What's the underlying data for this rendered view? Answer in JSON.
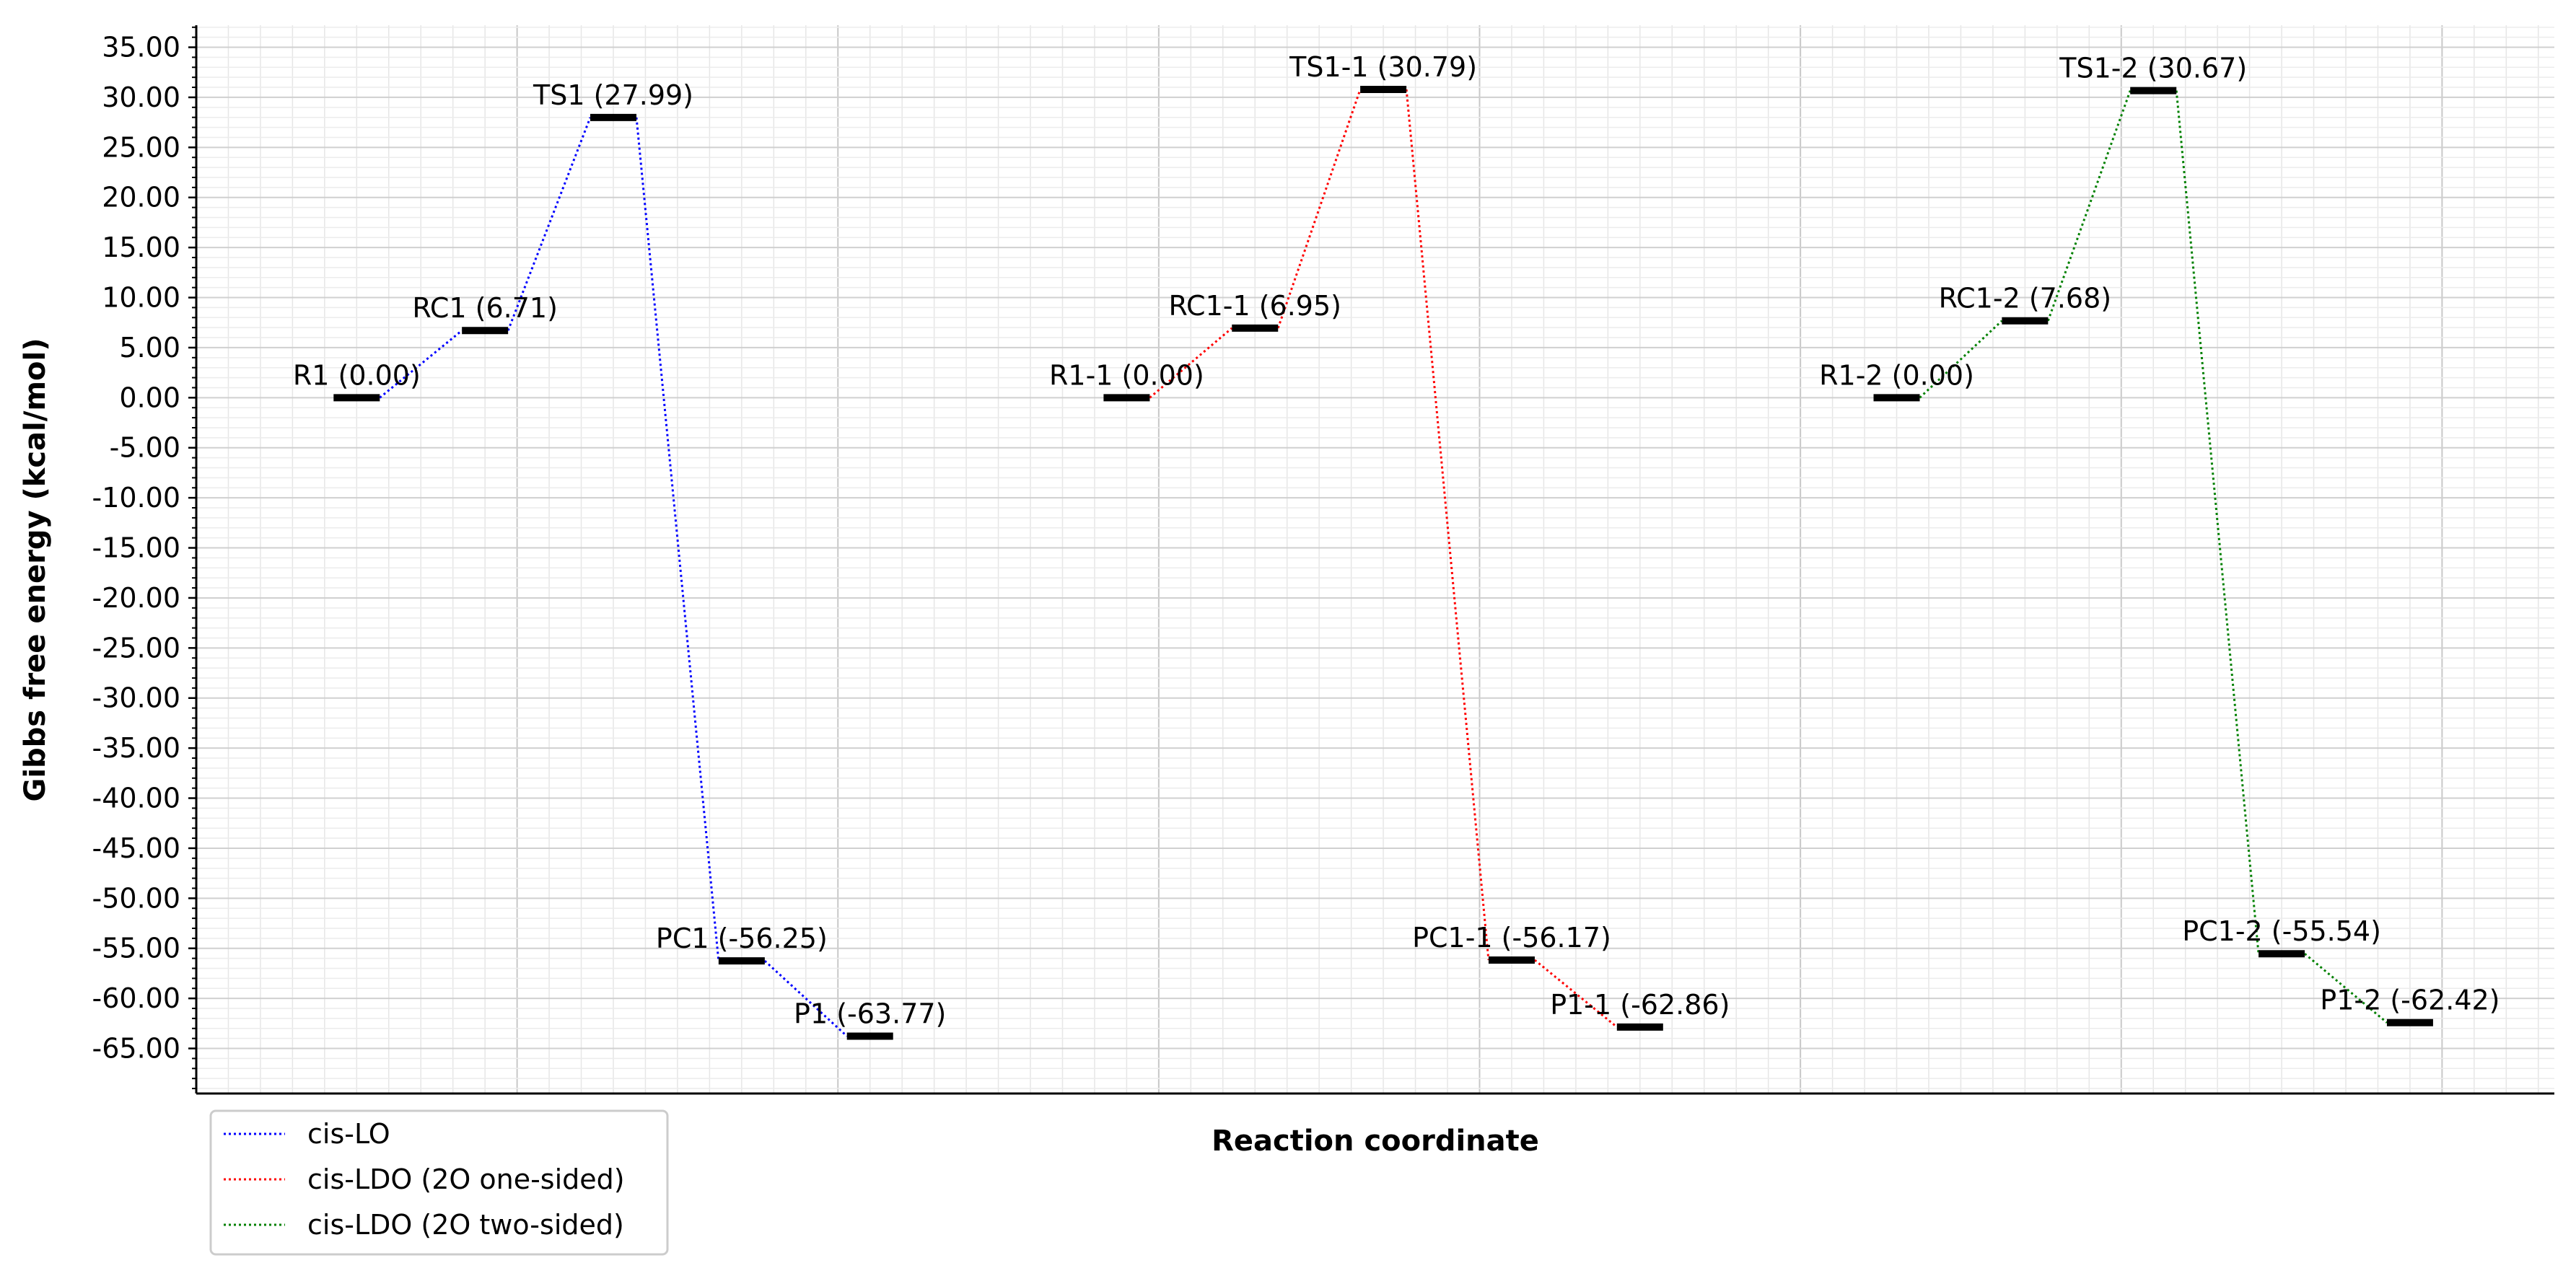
{
  "chart_data": {
    "type": "line",
    "title": "",
    "xlabel": "Reaction coordinate",
    "ylabel": "Gibbs free energy (kcal/mol)",
    "ylim": [
      -69.5,
      37.2
    ],
    "xlim": [
      -0.5,
      6.85
    ],
    "y_ticks": [
      35,
      30,
      25,
      20,
      15,
      10,
      5,
      0,
      -5,
      -10,
      -15,
      -20,
      -25,
      -30,
      -35,
      -40,
      -45,
      -50,
      -55,
      -60,
      -65
    ],
    "y_tick_labels": [
      "35.00",
      "30.00",
      "25.00",
      "20.00",
      "15.00",
      "10.00",
      "5.00",
      "0.00",
      "-5.00",
      "-10.00",
      "-15.00",
      "-20.00",
      "-25.00",
      "-30.00",
      "-35.00",
      "-40.00",
      "-45.00",
      "-50.00",
      "-55.00",
      "-60.00",
      "-65.00"
    ],
    "grid": true,
    "legend_position": "lower-left outside",
    "series": [
      {
        "name": "cis-LO",
        "color": "#0000ff",
        "points": [
          {
            "label": "R1 (0.00)",
            "x": 0.0,
            "y": 0.0
          },
          {
            "label": "RC1 (6.71)",
            "x": 0.4,
            "y": 6.71
          },
          {
            "label": "TS1 (27.99)",
            "x": 0.8,
            "y": 27.99
          },
          {
            "label": "PC1 (-56.25)",
            "x": 1.2,
            "y": -56.25
          },
          {
            "label": "P1 (-63.77)",
            "x": 1.6,
            "y": -63.77
          }
        ]
      },
      {
        "name": "cis-LDO (2O one-sided)",
        "color": "#ff0000",
        "points": [
          {
            "label": "R1-1 (0.00)",
            "x": 2.4,
            "y": 0.0
          },
          {
            "label": "RC1-1 (6.95)",
            "x": 2.8,
            "y": 6.95
          },
          {
            "label": "TS1-1 (30.79)",
            "x": 3.2,
            "y": 30.79
          },
          {
            "label": "PC1-1 (-56.17)",
            "x": 3.6,
            "y": -56.17
          },
          {
            "label": "P1-1 (-62.86)",
            "x": 4.0,
            "y": -62.86
          }
        ]
      },
      {
        "name": "cis-LDO (2O two-sided)",
        "color": "#008000",
        "points": [
          {
            "label": "R1-2 (0.00)",
            "x": 4.8,
            "y": 0.0
          },
          {
            "label": "RC1-2 (7.68)",
            "x": 5.2,
            "y": 7.68
          },
          {
            "label": "TS1-2 (30.67)",
            "x": 5.6,
            "y": 30.67
          },
          {
            "label": "PC1-2 (-55.54)",
            "x": 6.0,
            "y": -55.54
          },
          {
            "label": "P1-2 (-62.42)",
            "x": 6.4,
            "y": -62.42
          }
        ]
      }
    ]
  }
}
